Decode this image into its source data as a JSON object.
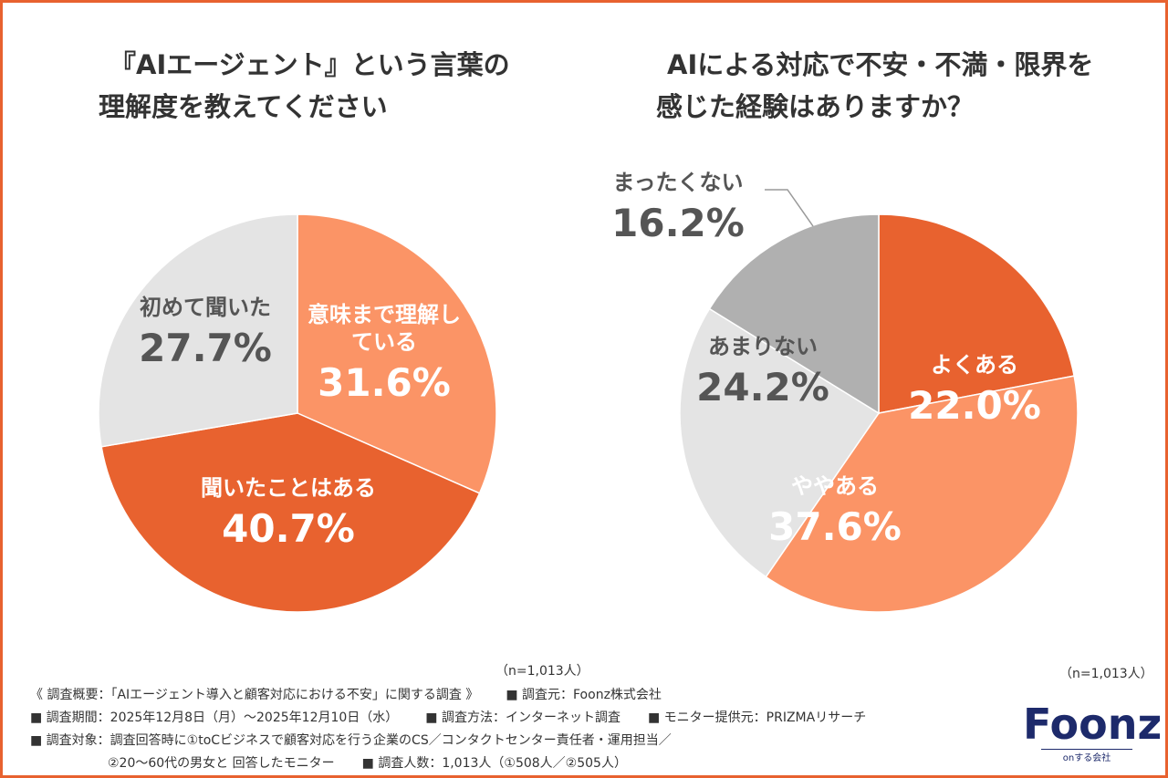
{
  "chart_data": [
    {
      "type": "pie",
      "title_lines": [
        "『AIエージェント』という言葉の",
        "理解度を教えてください"
      ],
      "categories": [
        "意味まで理解している",
        "聞いたことはある",
        "初めて聞いた"
      ],
      "values": [
        31.6,
        40.7,
        27.7
      ],
      "value_labels": [
        "31.6%",
        "40.7%",
        "27.7%"
      ],
      "colors": [
        "#fb9466",
        "#e8622f",
        "#e4e4e4"
      ],
      "note": "（n=1,013人）"
    },
    {
      "type": "pie",
      "title_lines": [
        "AIによる対応で不安・不満・限界を",
        "感じた経験はありますか？"
      ],
      "categories": [
        "よくある",
        "ややある",
        "あまりない",
        "まったくない"
      ],
      "values": [
        22.0,
        37.6,
        24.2,
        16.2
      ],
      "value_labels": [
        "22.0%",
        "37.6%",
        "24.2%",
        "16.2%"
      ],
      "colors": [
        "#e8622f",
        "#fb9466",
        "#e4e4e4",
        "#b0b0b0"
      ],
      "note": "（n=1,013人）"
    }
  ],
  "footer": {
    "lines": [
      [
        "《 調査概要：「AIエージェント導入と顧客対応における不安」に関する調査 》",
        "■ 調査元：Foonz株式会社"
      ],
      [
        "■ 調査期間：2025年12月8日（月）～2025年12月10日（水）",
        "■ 調査方法：インターネット調査",
        "■ モニター提供元：PRIZMAリサーチ"
      ],
      [
        "■ 調査対象：調査回答時に①toCビジネスで顧客対応を行う企業のCS／コンタクトセンター責任者・運用担当／"
      ],
      [
        "②20～60代の男女と 回答したモニター",
        "■ 調査人数：1,013人（①508人／②505人）"
      ]
    ]
  },
  "logo": {
    "name": "Foonz",
    "tagline": "onする会社"
  }
}
